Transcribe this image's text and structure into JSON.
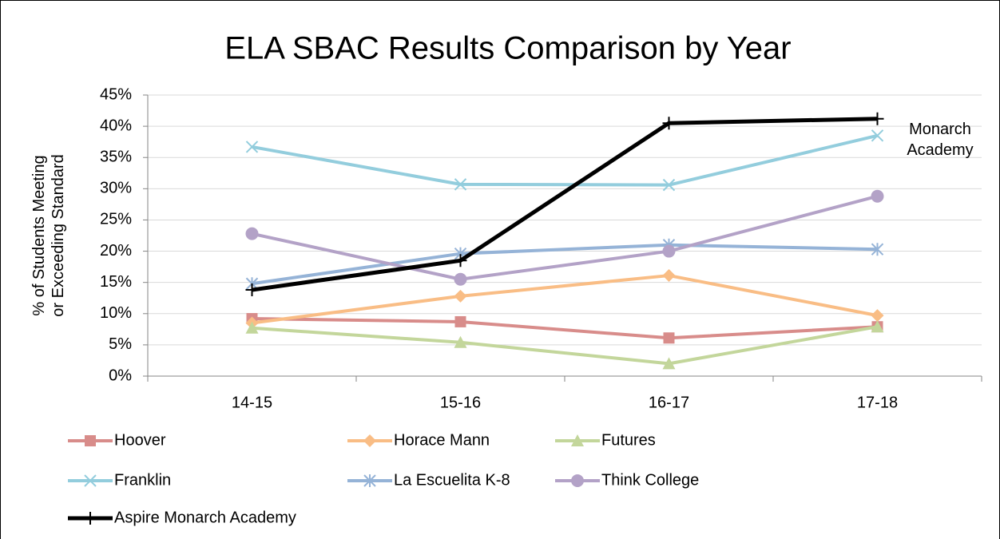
{
  "chart_data": {
    "type": "line",
    "title": "ELA SBAC Results Comparison by Year",
    "ylabel": [
      "% of Students Meeting",
      "or Exceeding Standard"
    ],
    "annotation": [
      "Monarch",
      "Academy"
    ],
    "categories": [
      "14-15",
      "15-16",
      "16-17",
      "17-18"
    ],
    "ylim": [
      0,
      45
    ],
    "yticks": [
      {
        "value": 0,
        "label": "0%"
      },
      {
        "value": 5,
        "label": "5%"
      },
      {
        "value": 10,
        "label": "10%"
      },
      {
        "value": 15,
        "label": "15%"
      },
      {
        "value": 20,
        "label": "20%"
      },
      {
        "value": 25,
        "label": "25%"
      },
      {
        "value": 30,
        "label": "30%"
      },
      {
        "value": 35,
        "label": "35%"
      },
      {
        "value": 40,
        "label": "40%"
      },
      {
        "value": 45,
        "label": "45%"
      }
    ],
    "grid": true,
    "legend": "bottom",
    "series": [
      {
        "name": "Hoover",
        "color": "#d88c8a",
        "marker": "square",
        "values": [
          9.2,
          8.7,
          6.1,
          7.9
        ]
      },
      {
        "name": "Horace Mann",
        "color": "#f9bd85",
        "marker": "diamond",
        "values": [
          8.5,
          12.8,
          16.1,
          9.7
        ]
      },
      {
        "name": "Futures",
        "color": "#c3d69b",
        "marker": "triangle",
        "values": [
          7.7,
          5.4,
          2.0,
          7.9
        ]
      },
      {
        "name": "Franklin",
        "color": "#93cddd",
        "marker": "x",
        "values": [
          36.7,
          30.7,
          30.6,
          38.5
        ]
      },
      {
        "name": "La Escuelita K-8",
        "color": "#95b3d7",
        "marker": "asterisk",
        "values": [
          14.8,
          19.6,
          21.0,
          20.3
        ]
      },
      {
        "name": "Think College",
        "color": "#b3a2c7",
        "marker": "circle",
        "values": [
          22.8,
          15.5,
          20.0,
          28.8
        ]
      },
      {
        "name": "Aspire Monarch Academy",
        "color": "#000000",
        "marker": "plus",
        "values": [
          13.8,
          18.5,
          40.5,
          41.2
        ]
      }
    ]
  }
}
